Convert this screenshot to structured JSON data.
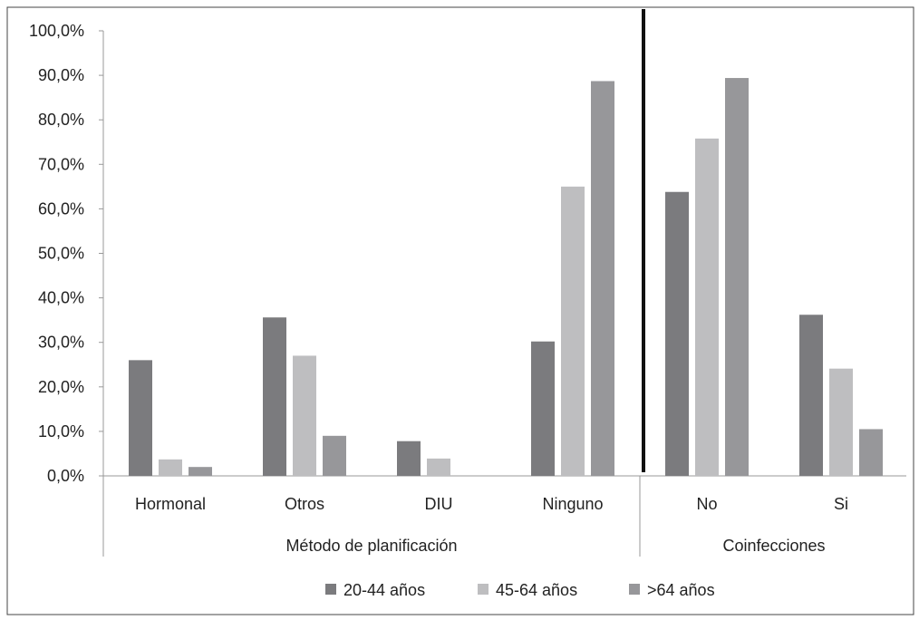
{
  "chart_data": {
    "type": "bar",
    "title": "",
    "xlabel": "",
    "ylabel": "",
    "ylim": [
      0,
      100
    ],
    "y_ticks": [
      "0,0%",
      "10,0%",
      "20,0%",
      "30,0%",
      "40,0%",
      "50,0%",
      "60,0%",
      "70,0%",
      "80,0%",
      "90,0%",
      "100,0%"
    ],
    "y_tick_values": [
      0,
      10,
      20,
      30,
      40,
      50,
      60,
      70,
      80,
      90,
      100
    ],
    "grid": false,
    "legend_position": "bottom",
    "groups": [
      {
        "label": "Método de planificación",
        "categories": [
          "Hormonal",
          "Otros",
          "DIU",
          "Ninguno"
        ]
      },
      {
        "label": "Coinfecciones",
        "categories": [
          "No",
          "Si"
        ]
      }
    ],
    "categories": [
      "Hormonal",
      "Otros",
      "DIU",
      "Ninguno",
      "No",
      "Si"
    ],
    "series": [
      {
        "name": "20-44 años",
        "color": "#7b7b7e",
        "values": [
          26.0,
          35.6,
          7.8,
          30.2,
          63.8,
          36.2
        ]
      },
      {
        "name": "45-64 años",
        "color": "#bebec0",
        "values": [
          3.7,
          27.0,
          3.9,
          65.0,
          75.8,
          24.1
        ]
      },
      {
        "name": ">64 años",
        "color": "#97979a",
        "values": [
          2.0,
          9.0,
          0.0,
          88.7,
          89.4,
          10.5
        ]
      }
    ]
  }
}
